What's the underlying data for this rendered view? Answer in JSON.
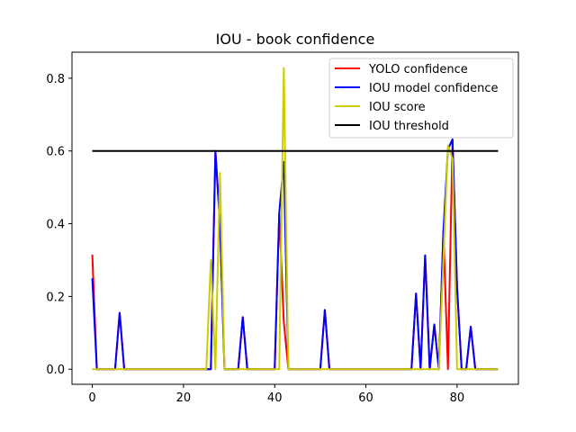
{
  "chart_data": {
    "type": "line",
    "title": "IOU - book confidence",
    "xlabel": "",
    "ylabel": "",
    "xlim": [
      -4.45,
      93.45
    ],
    "ylim": [
      -0.0415,
      0.8715
    ],
    "xticks": [
      0,
      20,
      40,
      60,
      80
    ],
    "yticks": [
      0.0,
      0.2,
      0.4,
      0.6,
      0.8
    ],
    "xtick_labels": [
      "0",
      "20",
      "40",
      "60",
      "80"
    ],
    "ytick_labels": [
      "0.0",
      "0.2",
      "0.4",
      "0.6",
      "0.8"
    ],
    "grid": false,
    "legend_position": "top-right",
    "series": [
      {
        "name": "YOLO confidence",
        "color": "#ff0000",
        "points": [
          [
            0,
            0.315
          ],
          [
            1,
            0
          ],
          [
            5,
            0
          ],
          [
            6,
            0.155
          ],
          [
            7,
            0
          ],
          [
            26,
            0
          ],
          [
            27,
            0.6
          ],
          [
            28,
            0.4
          ],
          [
            29,
            0
          ],
          [
            32,
            0
          ],
          [
            33,
            0.143
          ],
          [
            34,
            0
          ],
          [
            40,
            0
          ],
          [
            41,
            0.43
          ],
          [
            42,
            0.13
          ],
          [
            43,
            0
          ],
          [
            50,
            0
          ],
          [
            51,
            0.163
          ],
          [
            52,
            0
          ],
          [
            70,
            0
          ],
          [
            71,
            0.208
          ],
          [
            72,
            0
          ],
          [
            73,
            0.313
          ],
          [
            74,
            0
          ],
          [
            75,
            0.123
          ],
          [
            76,
            0
          ],
          [
            77,
            0.38
          ],
          [
            78,
            0
          ],
          [
            79,
            0.63
          ],
          [
            80,
            0.225
          ],
          [
            81,
            0
          ],
          [
            82,
            0
          ],
          [
            83,
            0.117
          ],
          [
            84,
            0
          ],
          [
            89,
            0
          ]
        ]
      },
      {
        "name": "IOU model confidence",
        "color": "#0000ff",
        "points": [
          [
            0,
            0.25
          ],
          [
            1,
            0
          ],
          [
            5,
            0
          ],
          [
            6,
            0.155
          ],
          [
            7,
            0
          ],
          [
            26,
            0
          ],
          [
            27,
            0.6
          ],
          [
            28,
            0.4
          ],
          [
            29,
            0
          ],
          [
            32,
            0
          ],
          [
            33,
            0.143
          ],
          [
            34,
            0
          ],
          [
            40,
            0
          ],
          [
            41,
            0.43
          ],
          [
            42,
            0.57
          ],
          [
            43,
            0
          ],
          [
            50,
            0
          ],
          [
            51,
            0.163
          ],
          [
            52,
            0
          ],
          [
            70,
            0
          ],
          [
            71,
            0.208
          ],
          [
            72,
            0
          ],
          [
            73,
            0.313
          ],
          [
            74,
            0
          ],
          [
            75,
            0.123
          ],
          [
            76,
            0
          ],
          [
            77,
            0.38
          ],
          [
            78,
            0.605
          ],
          [
            79,
            0.632
          ],
          [
            80,
            0.225
          ],
          [
            81,
            0
          ],
          [
            82,
            0
          ],
          [
            83,
            0.117
          ],
          [
            84,
            0
          ],
          [
            89,
            0
          ]
        ]
      },
      {
        "name": "IOU score",
        "color": "#cccc00",
        "points": [
          [
            0,
            0
          ],
          [
            25,
            0
          ],
          [
            26,
            0.3
          ],
          [
            27,
            0
          ],
          [
            28,
            0.54
          ],
          [
            29,
            0
          ],
          [
            41,
            0
          ],
          [
            42,
            0.828
          ],
          [
            43,
            0
          ],
          [
            76,
            0
          ],
          [
            77,
            0.3
          ],
          [
            78,
            0.615
          ],
          [
            79,
            0.578
          ],
          [
            80,
            0
          ],
          [
            89,
            0
          ]
        ]
      },
      {
        "name": "IOU threshold",
        "color": "#000000",
        "points": [
          [
            0,
            0.6
          ],
          [
            89,
            0.6
          ]
        ]
      }
    ]
  }
}
